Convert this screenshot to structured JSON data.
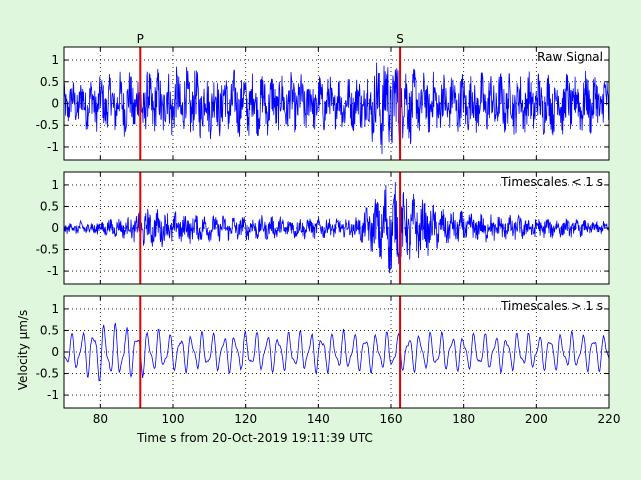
{
  "chart_data": {
    "type": "line",
    "xlabel": "Time s from 20-Oct-2019 19:11:39 UTC",
    "ylabel": "Velocity µm/s",
    "xlim": [
      70,
      220
    ],
    "ylim": [
      -1.3,
      1.3
    ],
    "xticks": [
      80,
      100,
      120,
      140,
      160,
      180,
      200,
      220
    ],
    "yticks": [
      -1,
      -0.5,
      0,
      0.5,
      1
    ],
    "grid": "dotted",
    "markers": [
      {
        "label": "P",
        "x": 91,
        "color": "#e00000"
      },
      {
        "label": "S",
        "x": 162.5,
        "color": "#e00000"
      }
    ],
    "series_color": "#0000ff",
    "panels": [
      {
        "title": "Raw Signal",
        "approx_envelope": [
          {
            "x": 70,
            "amp": 0.5
          },
          {
            "x": 90,
            "amp": 0.75
          },
          {
            "x": 100,
            "amp": 0.8
          },
          {
            "x": 150,
            "amp": 0.6
          },
          {
            "x": 155,
            "amp": 0.9
          },
          {
            "x": 158,
            "amp": 1.2
          },
          {
            "x": 162,
            "amp": 1.1
          },
          {
            "x": 168,
            "amp": 0.7
          },
          {
            "x": 220,
            "amp": 0.7
          }
        ]
      },
      {
        "title": "Timescales < 1 s",
        "approx_envelope": [
          {
            "x": 70,
            "amp": 0.12
          },
          {
            "x": 88,
            "amp": 0.25
          },
          {
            "x": 92,
            "amp": 0.45
          },
          {
            "x": 110,
            "amp": 0.3
          },
          {
            "x": 150,
            "amp": 0.22
          },
          {
            "x": 155,
            "amp": 0.6
          },
          {
            "x": 159,
            "amp": 1.1
          },
          {
            "x": 163,
            "amp": 0.9
          },
          {
            "x": 175,
            "amp": 0.4
          },
          {
            "x": 220,
            "amp": 0.15
          }
        ]
      },
      {
        "title": "Timescales > 1 s",
        "approx_envelope": [
          {
            "x": 70,
            "amp": 0.4
          },
          {
            "x": 80,
            "amp": 0.8
          },
          {
            "x": 100,
            "amp": 0.5
          },
          {
            "x": 140,
            "amp": 0.55
          },
          {
            "x": 180,
            "amp": 0.5
          },
          {
            "x": 220,
            "amp": 0.5
          }
        ]
      }
    ]
  }
}
